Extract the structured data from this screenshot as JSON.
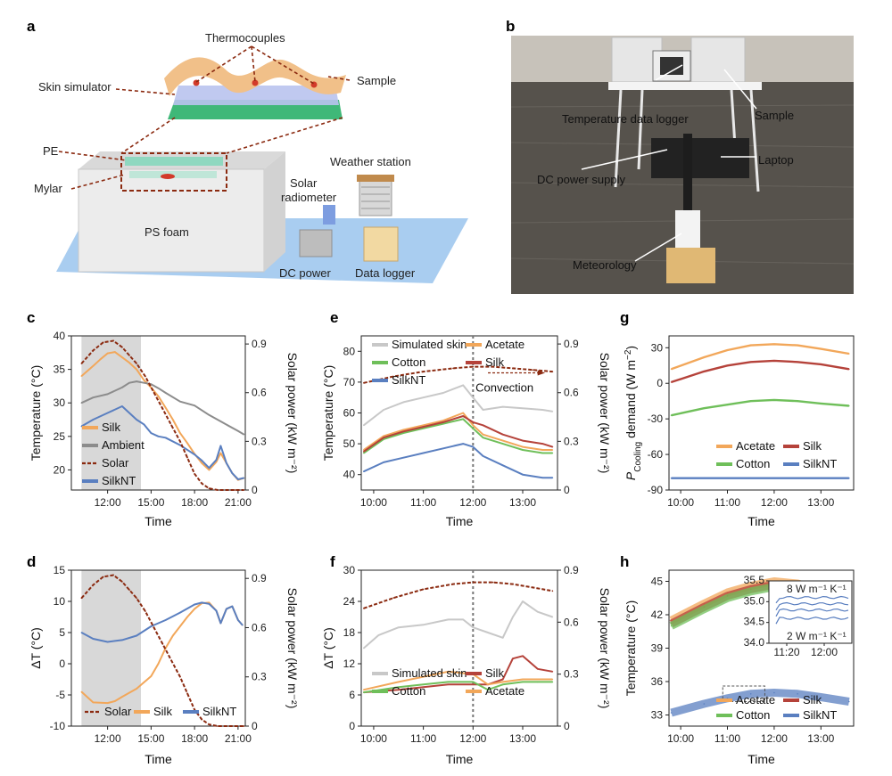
{
  "panel_letters": [
    "a",
    "b",
    "c",
    "d",
    "e",
    "f",
    "g",
    "h"
  ],
  "panel_a": {
    "labels": {
      "thermocouples": "Thermocouples",
      "sample": "Sample",
      "skin_simulator": "Skin simulator",
      "pe": "PE",
      "mylar": "Mylar",
      "ps_foam": "PS foam",
      "weather_station": "Weather station",
      "solar_radiometer_1": "Solar",
      "solar_radiometer_2": "radiometer",
      "dc_power": "DC power",
      "data_logger": "Data logger"
    }
  },
  "panel_b": {
    "labels": {
      "temperature_data_logger": "Temperature data logger",
      "sample": "Sample",
      "laptop": "Laptop",
      "dc_power_supply": "DC power supply",
      "meteorology": "Meteorology"
    }
  },
  "colors": {
    "silk": "#f2a75a",
    "ambient": "#8c8c8c",
    "solar": "#8b2a10",
    "silknt": "#5a7fc0",
    "simulated_skin": "#c8c8c8",
    "acetate": "#f2a75a",
    "cotton": "#6fbf5a",
    "silk_red": "#b5423a",
    "shade": "#d8d8d8"
  },
  "chart_data": [
    {
      "panel": "c",
      "type": "line",
      "xlabel": "Time",
      "ylabel": "Temperature (°C)",
      "y2label": "Solar power (kW m⁻²)",
      "xticks": [
        "12:00",
        "15:00",
        "18:00",
        "21:00"
      ],
      "x_hours": [
        9.5,
        21.5
      ],
      "ylim": [
        17,
        40
      ],
      "yticks": [
        20,
        25,
        30,
        35,
        40
      ],
      "y2lim": [
        0,
        0.95
      ],
      "y2ticks": [
        "0",
        "0.3",
        "0.6",
        "0.9"
      ],
      "shade": [
        10.2,
        14.3
      ],
      "series": [
        {
          "name": "Silk",
          "x": [
            10.2,
            11,
            11.5,
            12,
            12.5,
            13,
            13.5,
            14,
            14.5,
            15,
            15.5,
            16,
            16.5,
            17,
            17.5,
            18,
            18.5,
            19,
            19.5,
            19.8,
            20.2,
            20.6,
            21,
            21.4
          ],
          "y": [
            34,
            35.5,
            36.5,
            37.4,
            37.6,
            36.8,
            36,
            35,
            33.4,
            32.3,
            31,
            29.3,
            27.5,
            25.5,
            24,
            22.4,
            21,
            20,
            21.2,
            22.5,
            21,
            19.5,
            18.5,
            18.8
          ]
        },
        {
          "name": "Ambient",
          "x": [
            10.2,
            11,
            12,
            13,
            13.5,
            14,
            14.5,
            15,
            15.5,
            16,
            17,
            18,
            19,
            20,
            21,
            21.4
          ],
          "y": [
            30,
            30.8,
            31.3,
            32.3,
            33,
            33.2,
            33,
            32.8,
            32.2,
            31.5,
            30.2,
            29.6,
            28.2,
            27,
            25.8,
            25.3
          ]
        },
        {
          "name": "SilkNT",
          "x": [
            10.2,
            11,
            12,
            13,
            13.5,
            14,
            14.5,
            15,
            15.5,
            16,
            17,
            17.5,
            18,
            18.5,
            19,
            19.5,
            19.8,
            20.2,
            20.6,
            21,
            21.4
          ],
          "y": [
            26.5,
            27.5,
            28.5,
            29.5,
            28.5,
            27.5,
            26.8,
            25.5,
            25,
            24.8,
            23.7,
            23,
            22.3,
            21.4,
            20.3,
            21.5,
            23.6,
            21,
            19.5,
            18.6,
            18.8
          ]
        }
      ],
      "solar": {
        "name": "Solar",
        "x": [
          10.2,
          11,
          11.7,
          12.4,
          13,
          13.5,
          14,
          14.6,
          15.2,
          15.8,
          16.4,
          17,
          17.5,
          18,
          18.5,
          19,
          19.6,
          20.2,
          20.8,
          21.4
        ],
        "y": [
          0.78,
          0.86,
          0.91,
          0.92,
          0.88,
          0.83,
          0.78,
          0.7,
          0.6,
          0.5,
          0.4,
          0.3,
          0.2,
          0.1,
          0.04,
          0.01,
          0,
          0,
          0,
          0
        ]
      },
      "legend": [
        "Silk",
        "Ambient",
        "Solar",
        "SilkNT"
      ]
    },
    {
      "panel": "d",
      "type": "line",
      "xlabel": "Time",
      "ylabel": "ΔT (°C)",
      "y2label": "Solar power (kW m⁻²)",
      "xticks": [
        "12:00",
        "15:00",
        "18:00",
        "21:00"
      ],
      "x_hours": [
        9.5,
        21.5
      ],
      "ylim": [
        -10,
        15
      ],
      "yticks": [
        -10,
        -5,
        0,
        5,
        10,
        15
      ],
      "y2lim": [
        0,
        0.95
      ],
      "y2ticks": [
        "0",
        "0.3",
        "0.6",
        "0.9"
      ],
      "shade": [
        10.2,
        14.3
      ],
      "series": [
        {
          "name": "Silk",
          "x": [
            10.2,
            11,
            12,
            12.5,
            13,
            14,
            15,
            15.5,
            16,
            16.5,
            17,
            17.5,
            18,
            18.5,
            19,
            19.5,
            19.8,
            20.2,
            20.6,
            21,
            21.3
          ],
          "y": [
            -4.5,
            -6.2,
            -6.3,
            -6,
            -5.3,
            -4,
            -2,
            0,
            2.5,
            4.5,
            6,
            7.5,
            8.8,
            9.7,
            9.8,
            8.5,
            6.5,
            8.8,
            9.2,
            7,
            6.2
          ]
        },
        {
          "name": "SilkNT",
          "x": [
            10.2,
            11,
            12,
            13,
            14,
            15,
            16,
            17,
            18,
            18.5,
            19,
            19.5,
            19.8,
            20.2,
            20.6,
            21,
            21.3
          ],
          "y": [
            5,
            4,
            3.5,
            3.8,
            4.5,
            6,
            7,
            8.2,
            9.5,
            9.8,
            9.6,
            8.5,
            6.5,
            8.8,
            9.2,
            7,
            6.2
          ]
        }
      ],
      "solar": {
        "name": "Solar",
        "x": [
          10.2,
          11,
          11.7,
          12.4,
          13,
          13.5,
          14,
          14.6,
          15.2,
          15.8,
          16.4,
          17,
          17.5,
          18,
          18.5,
          19,
          19.6,
          20.2,
          20.8,
          21.4
        ],
        "y": [
          0.78,
          0.86,
          0.91,
          0.92,
          0.88,
          0.83,
          0.78,
          0.7,
          0.6,
          0.5,
          0.4,
          0.3,
          0.2,
          0.1,
          0.04,
          0.01,
          0,
          0,
          0,
          0
        ]
      },
      "legend": [
        "Solar",
        "Silk",
        "SilkNT"
      ]
    },
    {
      "panel": "e",
      "type": "line",
      "xlabel": "Time",
      "ylabel": "Temperature (°C)",
      "y2label": "Solar power (kW m⁻²)",
      "xticks": [
        "10:00",
        "11:00",
        "12:00",
        "13:00"
      ],
      "x_hours": [
        9.75,
        13.7
      ],
      "ylim": [
        35,
        85
      ],
      "yticks": [
        40,
        50,
        60,
        70,
        80
      ],
      "y2lim": [
        0,
        0.95
      ],
      "y2ticks": [
        "0",
        "0.3",
        "0.6",
        "0.9"
      ],
      "vline": 12.0,
      "annotation": "Convection",
      "series": [
        {
          "name": "Simulated skin",
          "x": [
            9.8,
            10.2,
            10.6,
            11,
            11.4,
            11.8,
            12,
            12.2,
            12.6,
            13,
            13.4,
            13.6
          ],
          "y": [
            56,
            61,
            63.5,
            65,
            66.5,
            69,
            65,
            61,
            62,
            61.5,
            61,
            60.5
          ]
        },
        {
          "name": "Acetate",
          "x": [
            9.8,
            10.2,
            10.6,
            11,
            11.4,
            11.8,
            12,
            12.2,
            12.6,
            13,
            13.4,
            13.6
          ],
          "y": [
            48,
            52.5,
            54.5,
            56,
            57.5,
            60,
            56,
            53,
            51,
            49,
            48,
            48
          ]
        },
        {
          "name": "Cotton",
          "x": [
            9.8,
            10.2,
            10.6,
            11,
            11.4,
            11.8,
            12,
            12.2,
            12.6,
            13,
            13.4,
            13.6
          ],
          "y": [
            47,
            51.5,
            53.5,
            55,
            56.5,
            58,
            55,
            52,
            50,
            48,
            47,
            47
          ]
        },
        {
          "name": "Silk",
          "x": [
            9.8,
            10.2,
            10.6,
            11,
            11.4,
            11.8,
            12,
            12.2,
            12.6,
            13,
            13.4,
            13.6
          ],
          "y": [
            47.5,
            52,
            54,
            55.5,
            57,
            59,
            57,
            56,
            53,
            51,
            50,
            49
          ]
        },
        {
          "name": "SilkNT",
          "x": [
            9.8,
            10.2,
            10.6,
            11,
            11.4,
            11.8,
            12,
            12.2,
            12.6,
            13,
            13.4,
            13.6
          ],
          "y": [
            41,
            44,
            45.5,
            47,
            48.5,
            50,
            49,
            46,
            43,
            40,
            39,
            39
          ]
        }
      ],
      "solar": {
        "name": "Solar",
        "x": [
          9.8,
          10.4,
          11,
          11.6,
          12,
          12.4,
          12.8,
          13.2,
          13.6
        ],
        "y": [
          0.66,
          0.7,
          0.73,
          0.75,
          0.76,
          0.76,
          0.75,
          0.74,
          0.73
        ]
      },
      "legend": [
        "Simulated skin",
        "Acetate",
        "Cotton",
        "Silk",
        "SilkNT"
      ]
    },
    {
      "panel": "f",
      "type": "line",
      "xlabel": "Time",
      "ylabel": "ΔT (°C)",
      "y2label": "Solar power (kW m⁻²)",
      "xticks": [
        "10:00",
        "11:00",
        "12:00",
        "13:00"
      ],
      "x_hours": [
        9.75,
        13.7
      ],
      "ylim": [
        0,
        30
      ],
      "yticks": [
        0,
        6,
        12,
        18,
        24,
        30
      ],
      "y2lim": [
        0,
        0.9
      ],
      "y2ticks": [
        "0",
        "0.3",
        "0.6",
        "0.9"
      ],
      "vline": 12.0,
      "series": [
        {
          "name": "Simulated skin",
          "x": [
            9.8,
            10.1,
            10.5,
            11,
            11.5,
            11.8,
            12,
            12.3,
            12.6,
            12.8,
            13,
            13.3,
            13.6
          ],
          "y": [
            15,
            17.5,
            19,
            19.5,
            20.5,
            20.5,
            19,
            18,
            17,
            21,
            24,
            22,
            21
          ]
        },
        {
          "name": "Silk",
          "x": [
            9.8,
            10.5,
            11,
            11.5,
            12,
            12.3,
            12.6,
            12.8,
            13,
            13.3,
            13.6
          ],
          "y": [
            6.5,
            7,
            7.5,
            8,
            8,
            8,
            9,
            13,
            13.5,
            11,
            10.5
          ]
        },
        {
          "name": "Cotton",
          "x": [
            9.8,
            10.5,
            11,
            11.5,
            12,
            12.3,
            12.6,
            13,
            13.3,
            13.6
          ],
          "y": [
            6.5,
            7.5,
            8,
            8.5,
            8.5,
            7,
            8,
            8.5,
            8.5,
            8.5
          ]
        },
        {
          "name": "Acetate",
          "x": [
            9.8,
            10.5,
            11,
            11.5,
            12,
            12.3,
            12.6,
            13,
            13.3,
            13.6
          ],
          "y": [
            7,
            8.5,
            9.5,
            10.5,
            10,
            8,
            8.5,
            9,
            9,
            9
          ]
        }
      ],
      "solar": {
        "name": "Solar",
        "x": [
          9.8,
          10.4,
          11,
          11.6,
          12,
          12.4,
          12.8,
          13.2,
          13.6
        ],
        "y": [
          0.68,
          0.74,
          0.79,
          0.82,
          0.83,
          0.83,
          0.82,
          0.8,
          0.78
        ]
      },
      "legend": [
        "Simulated skin",
        "Silk",
        "Cotton",
        "Acetate"
      ]
    },
    {
      "panel": "g",
      "type": "line",
      "xlabel": "Time",
      "ylabel": "P_Cooling demand (W m⁻²)",
      "ylabel_parts": [
        "P",
        "Cooling",
        " demand (W m",
        "−2",
        ")"
      ],
      "xticks": [
        "10:00",
        "11:00",
        "12:00",
        "13:00"
      ],
      "x_hours": [
        9.75,
        13.7
      ],
      "ylim": [
        -90,
        40
      ],
      "yticks": [
        -90,
        -60,
        -30,
        0,
        30
      ],
      "series": [
        {
          "name": "Acetate",
          "x": [
            9.8,
            10.5,
            11,
            11.5,
            12,
            12.5,
            13,
            13.6
          ],
          "y": [
            12,
            22,
            28,
            32,
            33,
            32,
            29,
            25
          ]
        },
        {
          "name": "Silk",
          "x": [
            9.8,
            10.5,
            11,
            11.5,
            12,
            12.5,
            13,
            13.6
          ],
          "y": [
            1,
            10,
            15,
            18,
            19,
            18,
            16,
            12
          ]
        },
        {
          "name": "Cotton",
          "x": [
            9.8,
            10.5,
            11,
            11.5,
            12,
            12.5,
            13,
            13.6
          ],
          "y": [
            -27,
            -21,
            -18,
            -15,
            -14,
            -15,
            -17,
            -19
          ]
        },
        {
          "name": "SilkNT",
          "x": [
            9.8,
            10.5,
            11,
            11.5,
            12,
            12.5,
            13,
            13.6
          ],
          "y": [
            -80,
            -80,
            -80,
            -80,
            -80,
            -80,
            -80,
            -80
          ]
        }
      ],
      "legend": [
        "Acetate",
        "Silk",
        "Cotton",
        "SilkNT"
      ]
    },
    {
      "panel": "h",
      "type": "line",
      "xlabel": "Time",
      "ylabel": "Temperature (°C)",
      "xticks": [
        "10:00",
        "11:00",
        "12:00",
        "13:00"
      ],
      "x_hours": [
        9.75,
        13.7
      ],
      "ylim": [
        32,
        46
      ],
      "yticks": [
        33,
        36,
        39,
        42,
        45
      ],
      "series": [
        {
          "name": "Acetate",
          "x": [
            9.8,
            10.5,
            11,
            11.5,
            12,
            12.5,
            13,
            13.6
          ],
          "y": [
            41.5,
            43,
            44,
            44.6,
            45,
            44.8,
            44.2,
            43.5
          ]
        },
        {
          "name": "Silk",
          "x": [
            9.8,
            10.5,
            11,
            11.5,
            12,
            12.5,
            13,
            13.6
          ],
          "y": [
            41.2,
            42.7,
            43.7,
            44.3,
            44.7,
            44.5,
            43.9,
            43.2
          ]
        },
        {
          "name": "Cotton",
          "x": [
            9.8,
            10.5,
            11,
            11.5,
            12,
            12.5,
            13,
            13.6
          ],
          "y": [
            41,
            42.5,
            43.5,
            44.1,
            44.5,
            44.3,
            43.7,
            43
          ]
        },
        {
          "name": "SilkNT",
          "x": [
            9.8,
            10.5,
            11,
            11.5,
            12,
            12.5,
            13,
            13.6
          ],
          "y": [
            33.2,
            34,
            34.5,
            34.9,
            35,
            34.9,
            34.6,
            34.2
          ]
        }
      ],
      "inset": {
        "xticks": [
          "11:20",
          "12:00"
        ],
        "yticks": [
          "34.0",
          "34.5",
          "35.0",
          "35.5"
        ],
        "ylim": [
          34.0,
          35.5
        ],
        "annotations": [
          "8 W m⁻¹ K⁻¹",
          "2 W m⁻¹ K⁻¹"
        ],
        "lines": [
          35.1,
          34.95,
          34.8,
          34.6
        ]
      },
      "legend": [
        "Acetate",
        "Silk",
        "Cotton",
        "SilkNT"
      ]
    }
  ]
}
